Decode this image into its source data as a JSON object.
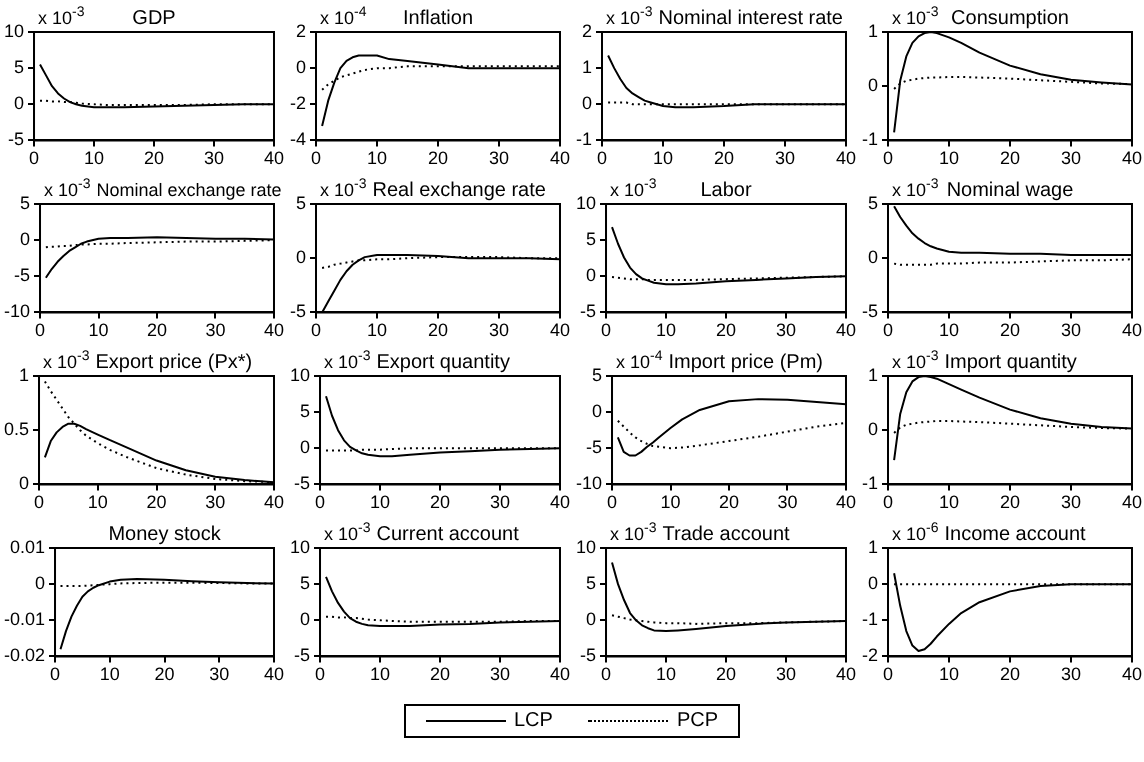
{
  "chart_data": [
    {
      "type": "line",
      "title": "GDP",
      "annotations": [
        "x 10$^{-3}$"
      ],
      "x": [
        1,
        2,
        3,
        4,
        5,
        6,
        7,
        8,
        10,
        12,
        15,
        20,
        25,
        30,
        35,
        40
      ],
      "xlim": [
        0,
        40
      ],
      "xticks": [
        0,
        10,
        20,
        30,
        40
      ],
      "ylim": [
        -5,
        10
      ],
      "yticks": [
        -5,
        0,
        5,
        10
      ],
      "legend": "bottom",
      "series": [
        {
          "name": "LCP",
          "color": "#000000",
          "line_style": "solid",
          "values": [
            5.5,
            4,
            2.5,
            1.5,
            0.8,
            0.3,
            0,
            -0.2,
            -0.4,
            -0.4,
            -0.4,
            -0.3,
            -0.2,
            -0.1,
            0,
            0
          ]
        },
        {
          "name": "PCP",
          "color": "#000000",
          "line_style": "dotted",
          "values": [
            0.5,
            0.5,
            0.4,
            0.4,
            0.3,
            0.3,
            0.2,
            0.1,
            0,
            -0.1,
            -0.1,
            -0.1,
            -0.1,
            0,
            0,
            0
          ]
        }
      ]
    },
    {
      "type": "line",
      "title": "Inflation",
      "annotations": [
        "x 10$^{-4}$"
      ],
      "x": [
        1,
        2,
        3,
        4,
        5,
        6,
        7,
        8,
        10,
        12,
        15,
        20,
        25,
        30,
        35,
        40
      ],
      "xlim": [
        0,
        40
      ],
      "xticks": [
        0,
        10,
        20,
        30,
        40
      ],
      "ylim": [
        -4,
        2
      ],
      "yticks": [
        -4,
        -2,
        0,
        2
      ],
      "legend": "bottom",
      "series": [
        {
          "name": "LCP",
          "color": "#000000",
          "line_style": "solid",
          "values": [
            -3.2,
            -1.8,
            -0.8,
            0,
            0.4,
            0.6,
            0.7,
            0.7,
            0.7,
            0.5,
            0.4,
            0.2,
            0,
            0,
            0,
            0
          ]
        },
        {
          "name": "PCP",
          "color": "#000000",
          "line_style": "dotted",
          "values": [
            -1.2,
            -0.9,
            -0.7,
            -0.5,
            -0.4,
            -0.3,
            -0.2,
            -0.1,
            0,
            0,
            0.1,
            0.1,
            0.1,
            0.1,
            0.1,
            0.1
          ]
        }
      ]
    },
    {
      "type": "line",
      "title": "Nominal interest rate",
      "annotations": [
        "x 10$^{-3}$"
      ],
      "x": [
        1,
        2,
        3,
        4,
        5,
        6,
        7,
        8,
        10,
        12,
        15,
        20,
        25,
        30,
        35,
        40
      ],
      "xlim": [
        0,
        40
      ],
      "xticks": [
        0,
        10,
        20,
        30,
        40
      ],
      "ylim": [
        -1,
        2
      ],
      "yticks": [
        -1,
        0,
        1,
        2
      ],
      "legend": "bottom",
      "series": [
        {
          "name": "LCP",
          "color": "#000000",
          "line_style": "solid",
          "values": [
            1.35,
            1,
            0.7,
            0.45,
            0.3,
            0.2,
            0.1,
            0.05,
            -0.05,
            -0.08,
            -0.08,
            -0.05,
            0,
            0,
            0,
            0
          ]
        },
        {
          "name": "PCP",
          "color": "#000000",
          "line_style": "dotted",
          "values": [
            0.05,
            0.05,
            0.05,
            0.05,
            0,
            0,
            0,
            0,
            0,
            0,
            0,
            0,
            0,
            0,
            0,
            0
          ]
        }
      ]
    },
    {
      "type": "line",
      "title": "Consumption",
      "annotations": [
        "x 10$^{-3}$"
      ],
      "x": [
        1,
        2,
        3,
        4,
        5,
        6,
        7,
        8,
        10,
        12,
        15,
        20,
        25,
        30,
        35,
        40
      ],
      "xlim": [
        0,
        40
      ],
      "xticks": [
        0,
        10,
        20,
        30,
        40
      ],
      "ylim": [
        -1,
        1
      ],
      "yticks": [
        -1,
        0,
        1
      ],
      "legend": "bottom",
      "series": [
        {
          "name": "LCP",
          "color": "#000000",
          "line_style": "solid",
          "values": [
            -0.85,
            0.1,
            0.55,
            0.8,
            0.92,
            0.98,
            1,
            0.98,
            0.9,
            0.8,
            0.62,
            0.38,
            0.22,
            0.12,
            0.07,
            0.03
          ]
        },
        {
          "name": "PCP",
          "color": "#000000",
          "line_style": "dotted",
          "values": [
            -0.05,
            0.05,
            0.1,
            0.12,
            0.14,
            0.15,
            0.16,
            0.16,
            0.17,
            0.17,
            0.16,
            0.14,
            0.11,
            0.08,
            0.05,
            0.04
          ]
        }
      ]
    },
    {
      "type": "line",
      "title": "Nominal exchange rate",
      "annotations": [
        "x 10$^{-3}$"
      ],
      "x": [
        1,
        2,
        3,
        4,
        5,
        6,
        7,
        8,
        10,
        12,
        15,
        20,
        25,
        30,
        35,
        40
      ],
      "xlim": [
        0,
        40
      ],
      "xticks": [
        0,
        10,
        20,
        30,
        40
      ],
      "ylim": [
        -10,
        5
      ],
      "yticks": [
        -10,
        -5,
        0,
        5
      ],
      "legend": "bottom",
      "series": [
        {
          "name": "LCP",
          "color": "#000000",
          "line_style": "solid",
          "values": [
            -5.2,
            -4,
            -3,
            -2.2,
            -1.5,
            -1,
            -0.5,
            -0.2,
            0.2,
            0.3,
            0.3,
            0.4,
            0.3,
            0.2,
            0.2,
            0.1
          ]
        },
        {
          "name": "PCP",
          "color": "#000000",
          "line_style": "dotted",
          "values": [
            -1,
            -0.9,
            -0.9,
            -0.8,
            -0.8,
            -0.7,
            -0.6,
            -0.6,
            -0.5,
            -0.5,
            -0.4,
            -0.3,
            -0.2,
            -0.2,
            -0.1,
            0
          ]
        }
      ]
    },
    {
      "type": "line",
      "title": "Real exchange rate",
      "annotations": [
        "x 10$^{-3}$"
      ],
      "x": [
        1,
        2,
        3,
        4,
        5,
        6,
        7,
        8,
        10,
        12,
        15,
        20,
        25,
        30,
        35,
        40
      ],
      "xlim": [
        0,
        40
      ],
      "xticks": [
        0,
        10,
        20,
        30,
        40
      ],
      "ylim": [
        -5,
        5
      ],
      "yticks": [
        -5,
        0,
        5
      ],
      "legend": "bottom",
      "series": [
        {
          "name": "LCP",
          "color": "#000000",
          "line_style": "solid",
          "values": [
            -5,
            -4,
            -3,
            -2,
            -1.2,
            -0.6,
            -0.2,
            0.1,
            0.3,
            0.3,
            0.3,
            0.2,
            0,
            0,
            0,
            -0.1
          ]
        },
        {
          "name": "PCP",
          "color": "#000000",
          "line_style": "dotted",
          "values": [
            -0.9,
            -0.8,
            -0.6,
            -0.5,
            -0.4,
            -0.3,
            -0.2,
            -0.2,
            -0.1,
            -0.1,
            0,
            0.1,
            0.1,
            0.1,
            0,
            0
          ]
        }
      ]
    },
    {
      "type": "line",
      "title": "Labor",
      "annotations": [
        "x 10$^{-3}$"
      ],
      "x": [
        1,
        2,
        3,
        4,
        5,
        6,
        7,
        8,
        10,
        12,
        15,
        20,
        25,
        30,
        35,
        40
      ],
      "xlim": [
        0,
        40
      ],
      "xticks": [
        0,
        10,
        20,
        30,
        40
      ],
      "ylim": [
        -5,
        10
      ],
      "yticks": [
        -5,
        0,
        5,
        10
      ],
      "legend": "bottom",
      "series": [
        {
          "name": "LCP",
          "color": "#000000",
          "line_style": "solid",
          "values": [
            6.8,
            4.5,
            2.6,
            1.2,
            0.3,
            -0.3,
            -0.6,
            -0.9,
            -1.1,
            -1.1,
            -1,
            -0.7,
            -0.5,
            -0.3,
            -0.1,
            0
          ]
        },
        {
          "name": "PCP",
          "color": "#000000",
          "line_style": "dotted",
          "values": [
            -0.1,
            -0.2,
            -0.3,
            -0.4,
            -0.4,
            -0.4,
            -0.5,
            -0.5,
            -0.5,
            -0.5,
            -0.5,
            -0.4,
            -0.3,
            -0.2,
            -0.1,
            0
          ]
        }
      ]
    },
    {
      "type": "line",
      "title": "Nominal wage",
      "annotations": [
        "x 10$^{-3}$"
      ],
      "x": [
        1,
        2,
        3,
        4,
        5,
        6,
        7,
        8,
        10,
        12,
        15,
        20,
        25,
        30,
        35,
        40
      ],
      "xlim": [
        0,
        40
      ],
      "xticks": [
        0,
        10,
        20,
        30,
        40
      ],
      "ylim": [
        -5,
        5
      ],
      "yticks": [
        -5,
        0,
        5
      ],
      "legend": "bottom",
      "series": [
        {
          "name": "LCP",
          "color": "#000000",
          "line_style": "solid",
          "values": [
            4.8,
            3.8,
            3,
            2.3,
            1.8,
            1.4,
            1.1,
            0.9,
            0.6,
            0.5,
            0.5,
            0.4,
            0.4,
            0.3,
            0.3,
            0.3
          ]
        },
        {
          "name": "PCP",
          "color": "#000000",
          "line_style": "dotted",
          "values": [
            -0.5,
            -0.6,
            -0.6,
            -0.6,
            -0.6,
            -0.6,
            -0.6,
            -0.5,
            -0.5,
            -0.5,
            -0.4,
            -0.4,
            -0.3,
            -0.2,
            -0.2,
            -0.1
          ]
        }
      ]
    },
    {
      "type": "line",
      "title": "Export price (Px*)",
      "annotations": [
        "x 10$^{-3}$"
      ],
      "x": [
        1,
        2,
        3,
        4,
        5,
        6,
        7,
        8,
        10,
        12,
        15,
        20,
        25,
        30,
        35,
        40
      ],
      "xlim": [
        0,
        40
      ],
      "xticks": [
        0,
        10,
        20,
        30,
        40
      ],
      "ylim": [
        0,
        1
      ],
      "yticks": [
        0,
        0.5,
        1
      ],
      "legend": "bottom",
      "series": [
        {
          "name": "LCP",
          "color": "#000000",
          "line_style": "solid",
          "values": [
            0.25,
            0.4,
            0.48,
            0.53,
            0.56,
            0.56,
            0.54,
            0.51,
            0.46,
            0.41,
            0.34,
            0.22,
            0.13,
            0.07,
            0.04,
            0.02
          ]
        },
        {
          "name": "PCP",
          "color": "#000000",
          "line_style": "dotted",
          "values": [
            0.95,
            0.86,
            0.78,
            0.7,
            0.62,
            0.56,
            0.5,
            0.45,
            0.38,
            0.32,
            0.25,
            0.15,
            0.09,
            0.05,
            0.03,
            0.02
          ]
        }
      ]
    },
    {
      "type": "line",
      "title": "Export quantity",
      "annotations": [
        "x 10$^{-3}$"
      ],
      "x": [
        1,
        2,
        3,
        4,
        5,
        6,
        7,
        8,
        10,
        12,
        15,
        20,
        25,
        30,
        35,
        40
      ],
      "xlim": [
        0,
        40
      ],
      "xticks": [
        0,
        10,
        20,
        30,
        40
      ],
      "ylim": [
        -5,
        10
      ],
      "yticks": [
        -5,
        0,
        5,
        10
      ],
      "legend": "bottom",
      "series": [
        {
          "name": "LCP",
          "color": "#000000",
          "line_style": "solid",
          "values": [
            7.2,
            4.5,
            2.5,
            1.1,
            0.2,
            -0.3,
            -0.7,
            -0.9,
            -1.1,
            -1.1,
            -0.9,
            -0.6,
            -0.4,
            -0.2,
            -0.1,
            0
          ]
        },
        {
          "name": "PCP",
          "color": "#000000",
          "line_style": "dotted",
          "values": [
            -0.3,
            -0.3,
            -0.3,
            -0.3,
            -0.3,
            -0.3,
            -0.2,
            -0.2,
            -0.2,
            -0.1,
            0,
            0,
            0,
            0,
            0,
            0
          ]
        }
      ]
    },
    {
      "type": "line",
      "title": "Import price (Pm)",
      "annotations": [
        "x 10$^{-4}$"
      ],
      "x": [
        1,
        2,
        3,
        4,
        5,
        6,
        7,
        8,
        10,
        12,
        15,
        20,
        25,
        30,
        35,
        40
      ],
      "xlim": [
        0,
        40
      ],
      "xticks": [
        0,
        10,
        20,
        30,
        40
      ],
      "ylim": [
        -10,
        5
      ],
      "yticks": [
        -10,
        -5,
        0,
        5
      ],
      "legend": "bottom",
      "series": [
        {
          "name": "LCP",
          "color": "#000000",
          "line_style": "solid",
          "values": [
            -3.5,
            -5.5,
            -6,
            -6,
            -5.5,
            -4.8,
            -4.2,
            -3.5,
            -2.2,
            -1,
            0.3,
            1.5,
            1.8,
            1.7,
            1.4,
            1.1
          ]
        },
        {
          "name": "PCP",
          "color": "#000000",
          "line_style": "dotted",
          "values": [
            -1.2,
            -2,
            -2.8,
            -3.5,
            -4,
            -4.4,
            -4.7,
            -4.8,
            -5,
            -4.9,
            -4.6,
            -4,
            -3.4,
            -2.7,
            -2,
            -1.5
          ]
        }
      ]
    },
    {
      "type": "line",
      "title": "Import quantity",
      "annotations": [
        "x 10$^{-3}$"
      ],
      "x": [
        1,
        2,
        3,
        4,
        5,
        6,
        7,
        8,
        10,
        12,
        15,
        20,
        25,
        30,
        35,
        40
      ],
      "xlim": [
        0,
        40
      ],
      "xticks": [
        0,
        10,
        20,
        30,
        40
      ],
      "ylim": [
        -1,
        1
      ],
      "yticks": [
        -1,
        0,
        1
      ],
      "legend": "bottom",
      "series": [
        {
          "name": "LCP",
          "color": "#000000",
          "line_style": "solid",
          "values": [
            -0.55,
            0.3,
            0.7,
            0.9,
            0.98,
            1,
            0.98,
            0.95,
            0.85,
            0.75,
            0.6,
            0.38,
            0.22,
            0.12,
            0.06,
            0.03
          ]
        },
        {
          "name": "PCP",
          "color": "#000000",
          "line_style": "dotted",
          "values": [
            -0.05,
            0.05,
            0.1,
            0.12,
            0.14,
            0.15,
            0.16,
            0.17,
            0.17,
            0.16,
            0.15,
            0.12,
            0.09,
            0.06,
            0.04,
            0.03
          ]
        }
      ]
    },
    {
      "type": "line",
      "title": "Money stock",
      "x": [
        1,
        2,
        3,
        4,
        5,
        6,
        7,
        8,
        10,
        12,
        15,
        20,
        25,
        30,
        35,
        40
      ],
      "xlim": [
        0,
        40
      ],
      "xticks": [
        0,
        10,
        20,
        30,
        40
      ],
      "ylim": [
        -0.02,
        0.01
      ],
      "yticks": [
        -0.02,
        -0.01,
        0,
        0.01
      ],
      "legend": "bottom",
      "series": [
        {
          "name": "LCP",
          "color": "#000000",
          "line_style": "solid",
          "values": [
            -0.018,
            -0.013,
            -0.009,
            -0.006,
            -0.0035,
            -0.002,
            -0.001,
            -0.0003,
            0.0007,
            0.0012,
            0.0014,
            0.0012,
            0.0008,
            0.0005,
            0.0003,
            0.0002
          ]
        },
        {
          "name": "PCP",
          "color": "#000000",
          "line_style": "dotted",
          "values": [
            -0.0005,
            -0.0005,
            -0.0005,
            -0.0005,
            -0.0005,
            -0.0004,
            -0.0003,
            -0.0002,
            0,
            0.0002,
            0.0003,
            0.0004,
            0.0004,
            0.0003,
            0.0002,
            0.0002
          ]
        }
      ]
    },
    {
      "type": "line",
      "title": "Current account",
      "annotations": [
        "x 10$^{-3}$"
      ],
      "x": [
        1,
        2,
        3,
        4,
        5,
        6,
        7,
        8,
        10,
        12,
        15,
        20,
        25,
        30,
        35,
        40
      ],
      "xlim": [
        0,
        40
      ],
      "xticks": [
        0,
        10,
        20,
        30,
        40
      ],
      "ylim": [
        -5,
        10
      ],
      "yticks": [
        -5,
        0,
        5,
        10
      ],
      "legend": "bottom",
      "series": [
        {
          "name": "LCP",
          "color": "#000000",
          "line_style": "solid",
          "values": [
            6,
            4,
            2.4,
            1.2,
            0.3,
            -0.2,
            -0.5,
            -0.7,
            -0.8,
            -0.8,
            -0.8,
            -0.6,
            -0.5,
            -0.3,
            -0.2,
            -0.1
          ]
        },
        {
          "name": "PCP",
          "color": "#000000",
          "line_style": "dotted",
          "values": [
            0.5,
            0.5,
            0.4,
            0.4,
            0.3,
            0.3,
            0.2,
            0.1,
            0,
            -0.1,
            -0.2,
            -0.2,
            -0.2,
            -0.2,
            -0.1,
            -0.1
          ]
        }
      ]
    },
    {
      "type": "line",
      "title": "Trade account",
      "annotations": [
        "x 10$^{-3}$"
      ],
      "x": [
        1,
        2,
        3,
        4,
        5,
        6,
        7,
        8,
        10,
        12,
        15,
        20,
        25,
        30,
        35,
        40
      ],
      "xlim": [
        0,
        40
      ],
      "xticks": [
        0,
        10,
        20,
        30,
        40
      ],
      "ylim": [
        -5,
        10
      ],
      "yticks": [
        -5,
        0,
        5,
        10
      ],
      "legend": "bottom",
      "series": [
        {
          "name": "LCP",
          "color": "#000000",
          "line_style": "solid",
          "values": [
            8,
            5,
            2.8,
            1,
            0,
            -0.7,
            -1.1,
            -1.4,
            -1.5,
            -1.4,
            -1.2,
            -0.8,
            -0.5,
            -0.3,
            -0.2,
            -0.1
          ]
        },
        {
          "name": "PCP",
          "color": "#000000",
          "line_style": "dotted",
          "values": [
            0.7,
            0.5,
            0.3,
            0.1,
            0,
            -0.1,
            -0.2,
            -0.3,
            -0.4,
            -0.4,
            -0.5,
            -0.4,
            -0.4,
            -0.3,
            -0.2,
            -0.1
          ]
        }
      ]
    },
    {
      "type": "line",
      "title": "Income account",
      "annotations": [
        "x 10$^{-6}$"
      ],
      "x": [
        1,
        2,
        3,
        4,
        5,
        6,
        7,
        8,
        10,
        12,
        15,
        20,
        25,
        30,
        35,
        40
      ],
      "xlim": [
        0,
        40
      ],
      "xticks": [
        0,
        10,
        20,
        30,
        40
      ],
      "ylim": [
        -2,
        1
      ],
      "yticks": [
        -2,
        -1,
        0,
        1
      ],
      "legend": "bottom",
      "series": [
        {
          "name": "LCP",
          "color": "#000000",
          "line_style": "solid",
          "values": [
            0.3,
            -0.6,
            -1.3,
            -1.7,
            -1.85,
            -1.8,
            -1.65,
            -1.45,
            -1.1,
            -0.8,
            -0.5,
            -0.2,
            -0.05,
            0,
            0,
            0
          ]
        },
        {
          "name": "PCP",
          "color": "#000000",
          "line_style": "dotted",
          "values": [
            0,
            0,
            0,
            0,
            0,
            0,
            0,
            0,
            0,
            0,
            0,
            0,
            0,
            0,
            0,
            0
          ]
        }
      ]
    }
  ]
}
